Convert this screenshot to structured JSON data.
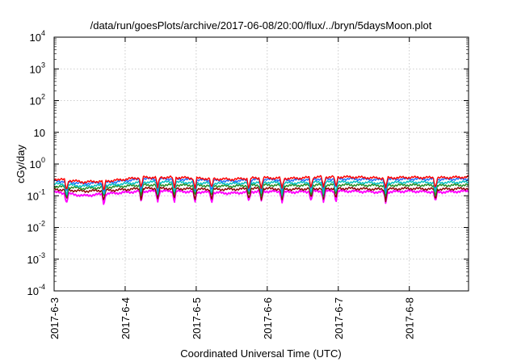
{
  "chart_data": {
    "type": "line",
    "title": "/data/run/goesPlots/archive/2017-06-08/20:00/flux/../bryn/5daysMoon.plot",
    "xlabel": "Coordinated Universal Time (UTC)",
    "ylabel": "cGy/day",
    "yscale": "log",
    "ylim": [
      0.0001,
      10000
    ],
    "y_ticks": [
      {
        "value": 0.0001,
        "base": "10",
        "exp": "-4"
      },
      {
        "value": 0.001,
        "base": "10",
        "exp": "-3"
      },
      {
        "value": 0.01,
        "base": "10",
        "exp": "-2"
      },
      {
        "value": 0.1,
        "base": "10",
        "exp": "-1"
      },
      {
        "value": 1,
        "base": "10",
        "exp": "0"
      },
      {
        "value": 10,
        "base": "10",
        "exp": ""
      },
      {
        "value": 100,
        "base": "10",
        "exp": "2"
      },
      {
        "value": 1000,
        "base": "10",
        "exp": "3"
      },
      {
        "value": 10000,
        "base": "10",
        "exp": "4"
      }
    ],
    "x_ticks": [
      "2017-6-3",
      "2017-6-4",
      "2017-6-5",
      "2017-6-6",
      "2017-6-7",
      "2017-6-8"
    ],
    "xlim": [
      "2017-06-03T00:00",
      "2017-06-08T20:00"
    ],
    "grid": true,
    "legend": "none",
    "series": [
      {
        "color": "#ff00ff",
        "values": [
          0.13,
          0.1,
          0.12,
          0.14,
          0.14,
          0.13,
          0.12,
          0.14,
          0.13,
          0.14,
          0.14,
          0.13,
          0.14,
          0.13,
          0.14
        ]
      },
      {
        "color": "#8b0000",
        "values": [
          0.16,
          0.14,
          0.15,
          0.17,
          0.17,
          0.16,
          0.16,
          0.17,
          0.16,
          0.17,
          0.17,
          0.16,
          0.17,
          0.16,
          0.17
        ]
      },
      {
        "color": "#228b22",
        "values": [
          0.2,
          0.17,
          0.19,
          0.22,
          0.22,
          0.21,
          0.2,
          0.22,
          0.21,
          0.22,
          0.22,
          0.21,
          0.22,
          0.21,
          0.22
        ]
      },
      {
        "color": "#00bfbf",
        "values": [
          0.24,
          0.2,
          0.22,
          0.27,
          0.27,
          0.25,
          0.24,
          0.27,
          0.25,
          0.27,
          0.27,
          0.25,
          0.27,
          0.26,
          0.27
        ]
      },
      {
        "color": "#1e6fff",
        "values": [
          0.3,
          0.24,
          0.27,
          0.34,
          0.34,
          0.31,
          0.29,
          0.33,
          0.31,
          0.34,
          0.34,
          0.32,
          0.34,
          0.33,
          0.34
        ]
      },
      {
        "color": "#ff0000",
        "values": [
          0.34,
          0.27,
          0.3,
          0.38,
          0.38,
          0.35,
          0.33,
          0.37,
          0.35,
          0.39,
          0.39,
          0.36,
          0.38,
          0.37,
          0.39
        ]
      }
    ]
  }
}
